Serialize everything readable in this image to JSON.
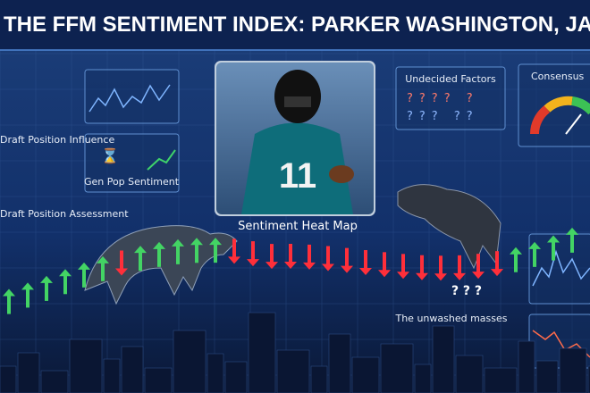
{
  "header": {
    "title": "THE FFM SENTIMENT INDEX: PARKER WASHINGTON, JAC"
  },
  "panels": {
    "draft_influence": "Draft Position Influence",
    "gen_pop": "Gen Pop Sentiment",
    "draft_assessment": "Draft Position Assessment",
    "heat_map": "Sentiment Heat Map",
    "undecided": "Undecided Factors",
    "consensus": "Consensus",
    "unwashed": "The unwashed masses"
  },
  "player": {
    "jersey_number": "11"
  }
}
